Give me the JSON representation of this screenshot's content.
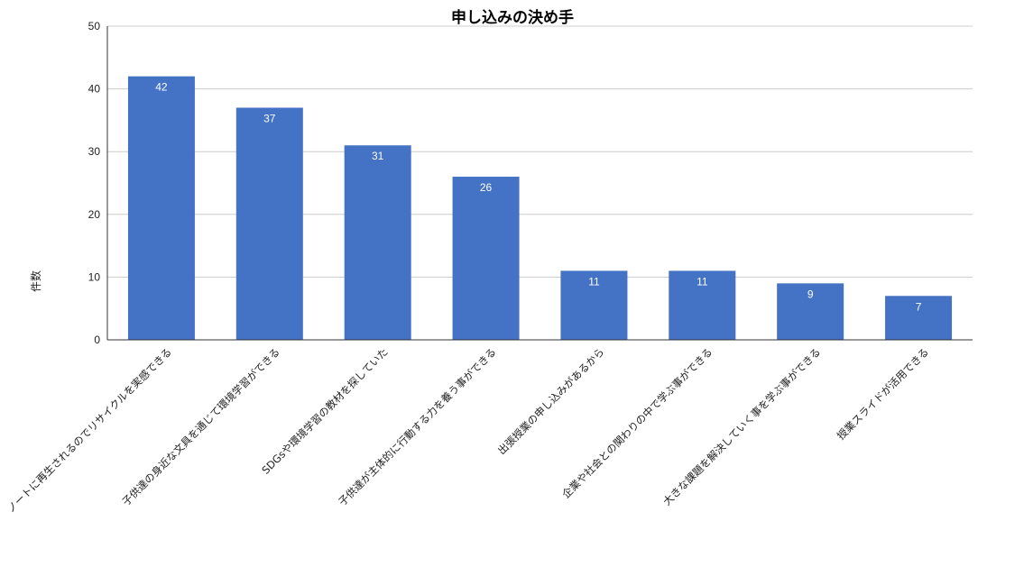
{
  "chart_data": {
    "type": "bar",
    "title": "申し込みの決め手",
    "xlabel": "",
    "ylabel": "件数",
    "ylim": [
      0,
      50
    ],
    "yticks": [
      "0",
      "10",
      "20",
      "30",
      "40",
      "50"
    ],
    "grid": true,
    "legend": "none",
    "bar_color": "#4472c4",
    "categories": [
      "ノートに再生されるのでリサイクルを実感できる",
      "子供達の身近な文具を通じて環境学習ができる",
      "SDGsや環境学習の教材を探していた",
      "子供達が主体的に行動する力を養う事ができる",
      "出張授業の申し込みがあるから",
      "企業や社会との関わりの中で学ぶ事ができる",
      "大きな課題を解決していく事を学ぶ事ができる",
      "授業スライドが活用できる"
    ],
    "values": [
      42,
      37,
      31,
      26,
      11,
      11,
      9,
      7
    ]
  }
}
